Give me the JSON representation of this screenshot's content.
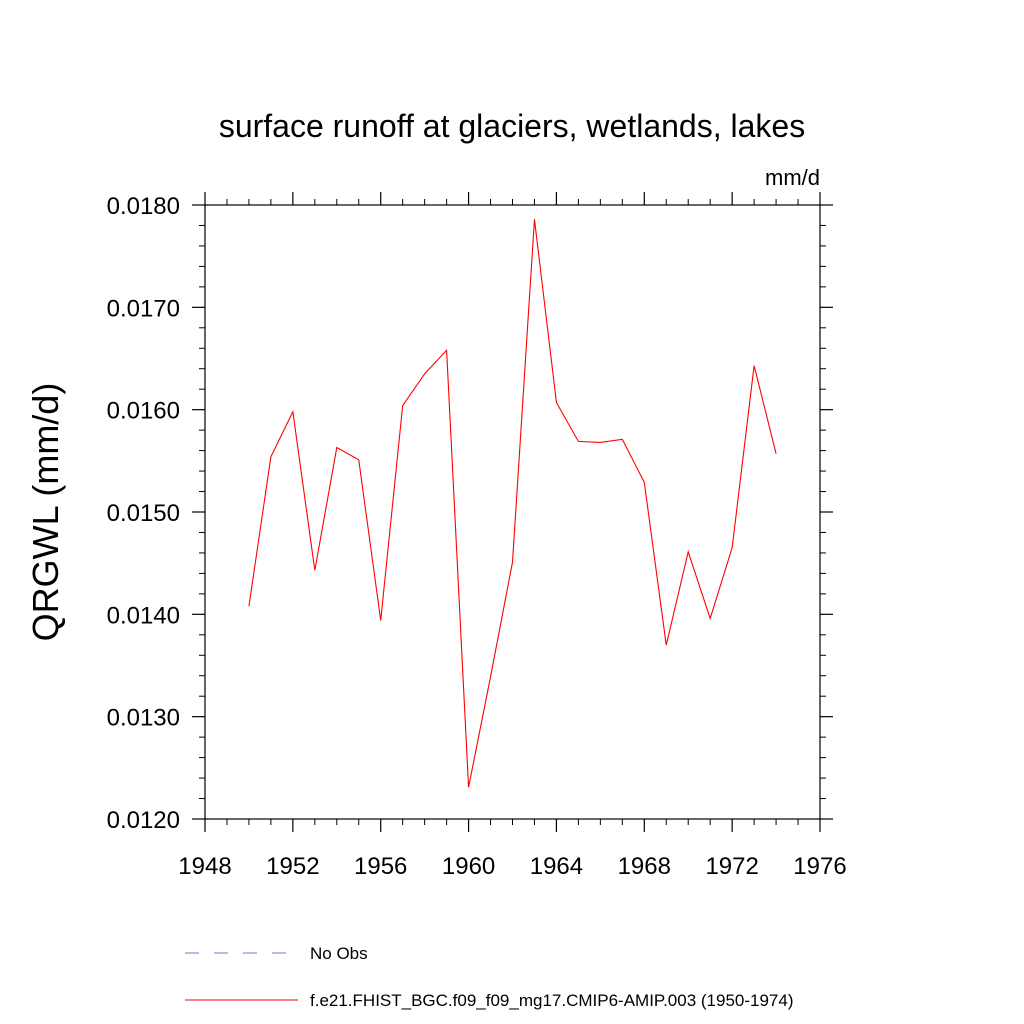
{
  "chart_data": {
    "type": "line",
    "title": "surface runoff at glaciers, wetlands, lakes",
    "units": "mm/d",
    "ylabel": "QRGWL  (mm/d)",
    "xlim": [
      1948,
      1976
    ],
    "ylim": [
      0.012,
      0.018
    ],
    "x_ticks": [
      1948,
      1952,
      1956,
      1960,
      1964,
      1968,
      1972,
      1976
    ],
    "y_ticks": [
      "0.0120",
      "0.0130",
      "0.0140",
      "0.0150",
      "0.0160",
      "0.0170",
      "0.0180"
    ],
    "series": [
      {
        "name": "f.e21.FHIST_BGC.f09_f09_mg17.CMIP6-AMIP.003 (1950-1974)",
        "color": "#ff0000",
        "x": [
          1950,
          1951,
          1952,
          1953,
          1954,
          1955,
          1956,
          1957,
          1958,
          1959,
          1960,
          1961,
          1962,
          1963,
          1964,
          1965,
          1966,
          1967,
          1968,
          1969,
          1970,
          1971,
          1972,
          1973,
          1974
        ],
        "y": [
          0.01408,
          0.01554,
          0.01598,
          0.01443,
          0.01563,
          0.01551,
          0.01394,
          0.01604,
          0.01635,
          0.01658,
          0.01231,
          0.01339,
          0.01451,
          0.01786,
          0.01607,
          0.01569,
          0.01568,
          0.01571,
          0.01529,
          0.0137,
          0.01461,
          0.01396,
          0.01465,
          0.01643,
          0.01557
        ]
      }
    ],
    "legend": [
      {
        "label": "No Obs",
        "color": "#7777cc",
        "style": "dashed"
      },
      {
        "label": "f.e21.FHIST_BGC.f09_f09_mg17.CMIP6-AMIP.003 (1950-1974)",
        "color": "#ff0000",
        "style": "solid"
      }
    ],
    "grid": false,
    "legend_position": "bottom"
  }
}
